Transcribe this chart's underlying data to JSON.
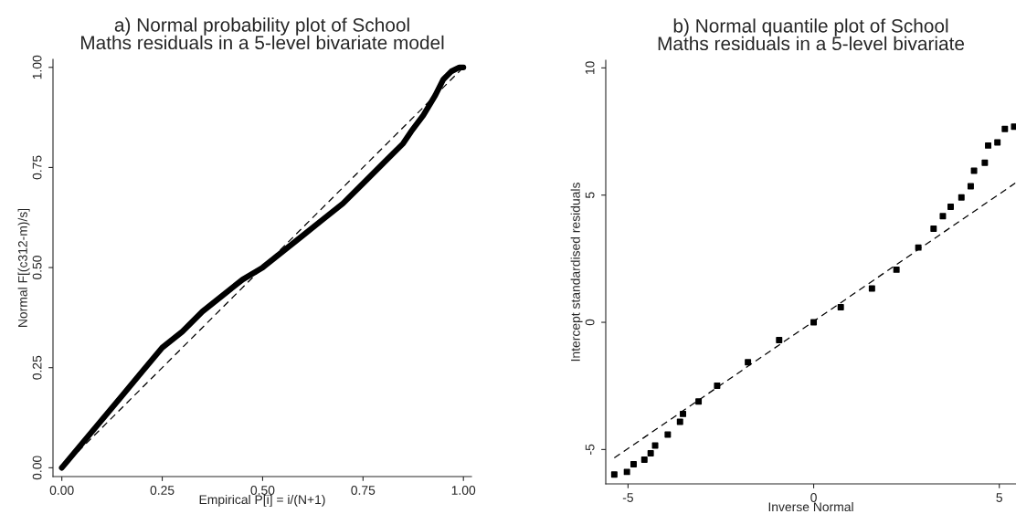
{
  "chart_data": [
    {
      "type": "line",
      "title": "a) Normal probability plot of School\nMaths residuals in a 5-level bivariate model",
      "xlabel": "Empirical P[i] = i/(N+1)",
      "ylabel": "Normal F[(c312-m)/s]",
      "xlim": [
        -0.022,
        1.02
      ],
      "ylim": [
        -0.022,
        1.02
      ],
      "xticks": [
        {
          "value": 0,
          "label": "0.00"
        },
        {
          "value": 0.25,
          "label": "0.25"
        },
        {
          "value": 0.5,
          "label": "0.50"
        },
        {
          "value": 0.75,
          "label": "0.75"
        },
        {
          "value": 1,
          "label": "1.00"
        }
      ],
      "yticks": [
        {
          "value": 0,
          "label": "0.00"
        },
        {
          "value": 0.25,
          "label": "0.25"
        },
        {
          "value": 0.5,
          "label": "0.50"
        },
        {
          "value": 0.75,
          "label": "0.75"
        },
        {
          "value": 1,
          "label": "1.00"
        }
      ],
      "grid": false,
      "legend": false,
      "series": [
        {
          "color": "#000000",
          "x": [
            0.0,
            0.05,
            0.1,
            0.15,
            0.2,
            0.25,
            0.3,
            0.35,
            0.4,
            0.45,
            0.5,
            0.55,
            0.6,
            0.65,
            0.7,
            0.75,
            0.8,
            0.85,
            0.87,
            0.9,
            0.93,
            0.95,
            0.97,
            0.99,
            1.0
          ],
          "values": [
            0.0,
            0.06,
            0.12,
            0.18,
            0.24,
            0.3,
            0.34,
            0.39,
            0.43,
            0.47,
            0.5,
            0.54,
            0.58,
            0.62,
            0.66,
            0.71,
            0.76,
            0.81,
            0.84,
            0.88,
            0.93,
            0.97,
            0.99,
            1.0,
            1.0
          ]
        },
        {
          "color": "#000000",
          "line_style": "dashed",
          "x": [
            0,
            1
          ],
          "values": [
            0,
            1
          ]
        }
      ]
    },
    {
      "type": "line",
      "title": "b) Normal quantile plot of School\nMaths residuals in a 5-level bivariate",
      "xlabel": "Inverse Normal",
      "ylabel": "Intercept standardised residuals",
      "xlim": [
        -5.6,
        5.45
      ],
      "ylim": [
        -6.35,
        10.3
      ],
      "xticks": [
        -5,
        0,
        5
      ],
      "yticks": [
        -5,
        0,
        5,
        10
      ],
      "grid": false,
      "legend": false,
      "series": [
        {
          "type": "scatter",
          "color": "#000000",
          "marker": "square",
          "x": [
            -5.37,
            -5.03,
            -4.85,
            -4.56,
            -4.39,
            -4.27,
            -3.93,
            -3.6,
            -3.52,
            -3.1,
            -2.6,
            -1.77,
            -0.93,
            0,
            0.73,
            1.57,
            2.23,
            2.82,
            3.23,
            3.48,
            3.69,
            3.98,
            4.23,
            4.32,
            4.61,
            4.7,
            4.95,
            5.15,
            5.4
          ],
          "values": [
            -5.98,
            -5.88,
            -5.58,
            -5.4,
            -5.15,
            -4.84,
            -4.41,
            -3.91,
            -3.6,
            -3.11,
            -2.49,
            -1.57,
            -0.7,
            0,
            0.59,
            1.33,
            2.07,
            2.94,
            3.68,
            4.17,
            4.54,
            4.91,
            5.35,
            5.96,
            6.27,
            6.95,
            7.07,
            7.6,
            7.69
          ]
        },
        {
          "color": "#000000",
          "line_style": "dashed",
          "x": [
            -5.37,
            5.43
          ],
          "values": [
            -5.33,
            5.47
          ]
        }
      ]
    }
  ]
}
